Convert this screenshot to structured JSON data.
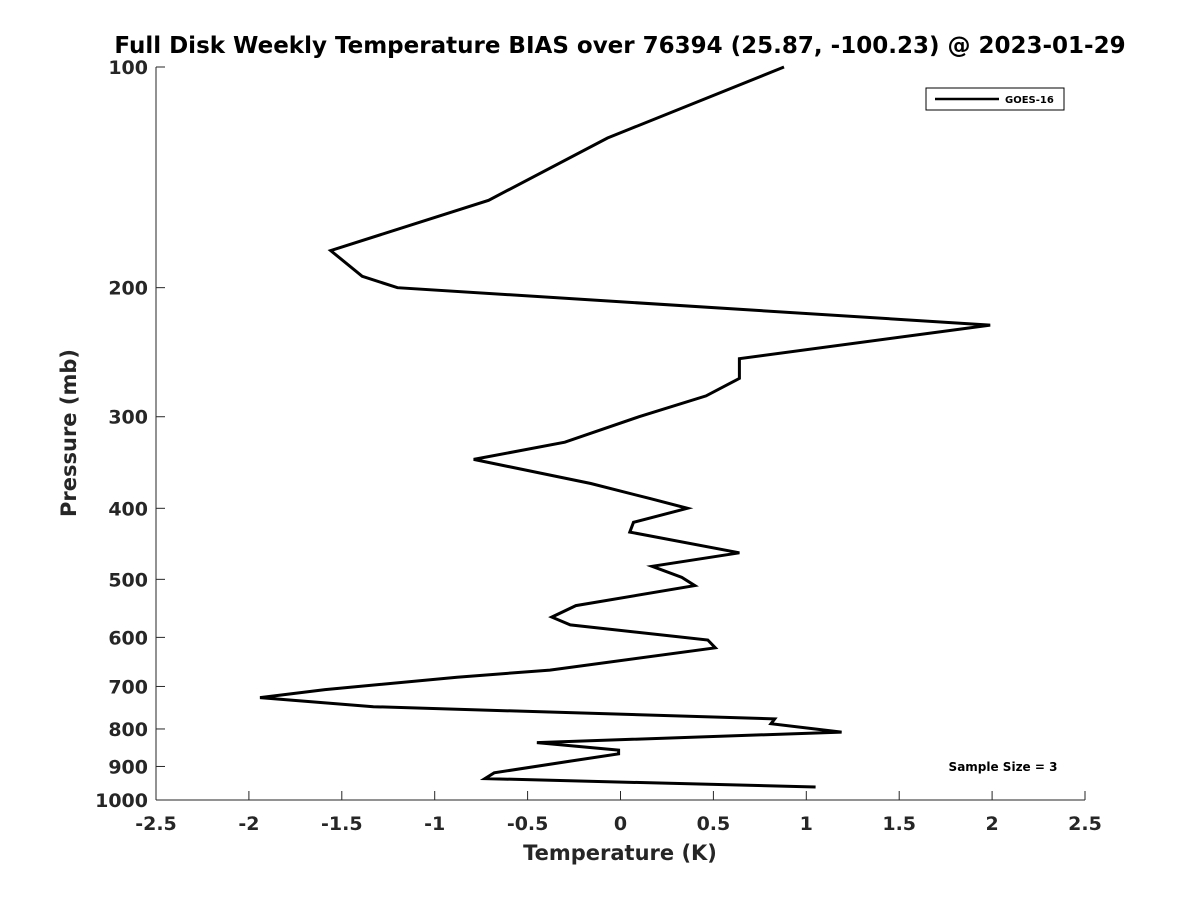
{
  "chart_data": {
    "type": "line",
    "title": "Full Disk Weekly Temperature BIAS over 76394 (25.87, -100.23) @ 2023-01-29",
    "xlabel": "Temperature (K)",
    "ylabel": "Pressure (mb)",
    "xlim": [
      -2.5,
      2.5
    ],
    "ylim": [
      100,
      1000
    ],
    "y_scale": "log",
    "y_reversed": true,
    "x_ticks": [
      "-2.5",
      "-2",
      "-1.5",
      "-1",
      "-0.5",
      "0",
      "0.5",
      "1",
      "1.5",
      "2",
      "2.5"
    ],
    "x_tick_values": [
      -2.5,
      -2,
      -1.5,
      -1,
      -0.5,
      0,
      0.5,
      1,
      1.5,
      2,
      2.5
    ],
    "y_ticks": [
      "100",
      "200",
      "300",
      "400",
      "500",
      "600",
      "700",
      "800",
      "900",
      "1000"
    ],
    "y_tick_values": [
      100,
      200,
      300,
      400,
      500,
      600,
      700,
      800,
      900,
      1000
    ],
    "grid": false,
    "legend_position": "top-right",
    "series": [
      {
        "name": "GOES-16",
        "color": "#000000",
        "points": [
          [
            0.88,
            100
          ],
          [
            -0.07,
            125
          ],
          [
            -0.71,
            152
          ],
          [
            -1.56,
            178
          ],
          [
            -1.39,
            193
          ],
          [
            -1.2,
            200
          ],
          [
            1.99,
            225
          ],
          [
            0.64,
            250
          ],
          [
            0.64,
            266
          ],
          [
            0.46,
            281
          ],
          [
            0.1,
            300
          ],
          [
            -0.3,
            325
          ],
          [
            -0.79,
            343
          ],
          [
            -0.16,
            370
          ],
          [
            0.16,
            388
          ],
          [
            0.36,
            400
          ],
          [
            0.07,
            418
          ],
          [
            0.05,
            431
          ],
          [
            0.64,
            460
          ],
          [
            0.17,
            480
          ],
          [
            0.33,
            497
          ],
          [
            0.4,
            510
          ],
          [
            -0.24,
            543
          ],
          [
            -0.37,
            563
          ],
          [
            -0.27,
            577
          ],
          [
            0.47,
            605
          ],
          [
            0.51,
            620
          ],
          [
            -0.38,
            665
          ],
          [
            -0.88,
            680
          ],
          [
            -1.59,
            707
          ],
          [
            -1.94,
            725
          ],
          [
            -1.33,
            746
          ],
          [
            0.83,
            775
          ],
          [
            0.81,
            787
          ],
          [
            1.19,
            808
          ],
          [
            -0.45,
            835
          ],
          [
            -0.01,
            855
          ],
          [
            -0.01,
            865
          ],
          [
            -0.27,
            885
          ],
          [
            -0.68,
            918
          ],
          [
            -0.73,
            935
          ],
          [
            1.05,
            960
          ]
        ]
      }
    ],
    "annotations": [
      "Sample Size = 3"
    ]
  }
}
